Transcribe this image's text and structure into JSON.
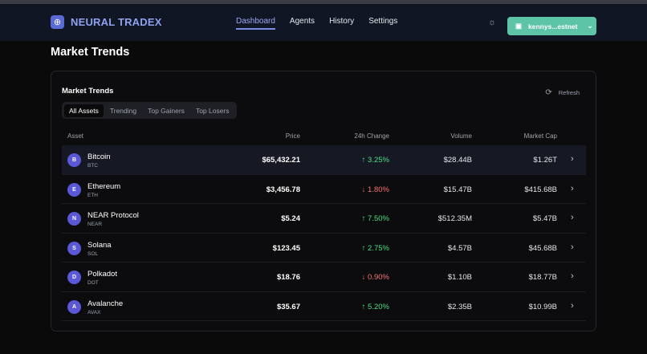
{
  "app": {
    "name": "NEURAL TRADEX",
    "logo_icon": "brain-icon"
  },
  "nav": [
    {
      "label": "Dashboard",
      "active": true
    },
    {
      "label": "Agents"
    },
    {
      "label": "History"
    },
    {
      "label": "Settings"
    }
  ],
  "wallet": {
    "label": "kennys...estnet",
    "color": "#5ec4a7"
  },
  "page_title": "Market Trends",
  "card": {
    "title": "Market Trends",
    "refresh_label": "Refresh",
    "tabs": [
      {
        "label": "All Assets",
        "active": true
      },
      {
        "label": "Trending"
      },
      {
        "label": "Top Gainers"
      },
      {
        "label": "Top Losers"
      }
    ],
    "columns": {
      "asset": "Asset",
      "price": "Price",
      "change": "24h Change",
      "volume": "Volume",
      "cap": "Market Cap"
    },
    "rows": [
      {
        "initial": "B",
        "name": "Bitcoin",
        "symbol": "BTC",
        "price": "$65,432.21",
        "change": "↑ 3.25%",
        "dir": "up",
        "volume": "$28.44B",
        "cap": "$1.26T"
      },
      {
        "initial": "E",
        "name": "Ethereum",
        "symbol": "ETH",
        "price": "$3,456.78",
        "change": "↓ 1.80%",
        "dir": "down",
        "volume": "$15.47B",
        "cap": "$415.68B"
      },
      {
        "initial": "N",
        "name": "NEAR Protocol",
        "symbol": "NEAR",
        "price": "$5.24",
        "change": "↑ 7.50%",
        "dir": "up",
        "volume": "$512.35M",
        "cap": "$5.47B"
      },
      {
        "initial": "S",
        "name": "Solana",
        "symbol": "SOL",
        "price": "$123.45",
        "change": "↑ 2.75%",
        "dir": "up",
        "volume": "$4.57B",
        "cap": "$45.68B"
      },
      {
        "initial": "D",
        "name": "Polkadot",
        "symbol": "DOT",
        "price": "$18.76",
        "change": "↓ 0.90%",
        "dir": "down",
        "volume": "$1.10B",
        "cap": "$18.77B"
      },
      {
        "initial": "A",
        "name": "Avalanche",
        "symbol": "AVAX",
        "price": "$35.67",
        "change": "↑ 5.20%",
        "dir": "up",
        "volume": "$2.35B",
        "cap": "$10.99B"
      }
    ]
  },
  "colors": {
    "up": "#4ade80",
    "down": "#f87171",
    "accent": "#7b8ce6"
  }
}
